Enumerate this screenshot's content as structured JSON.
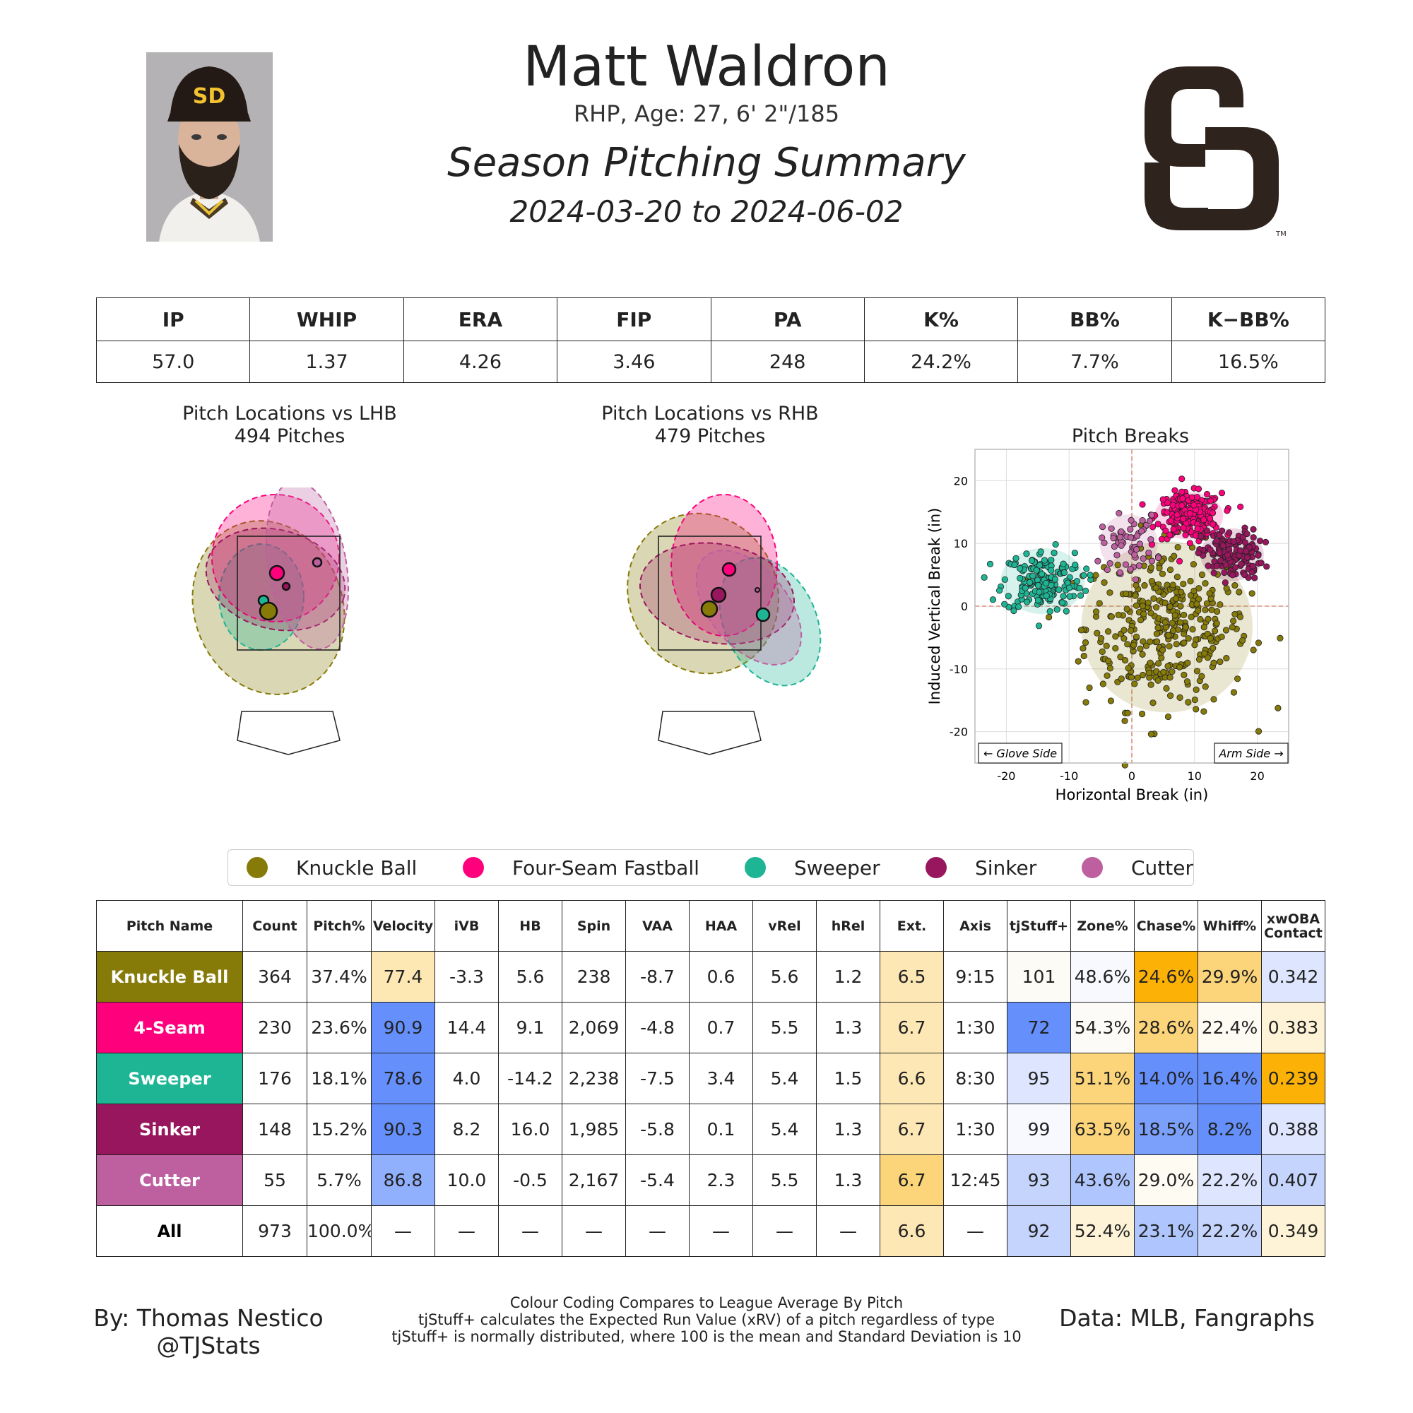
{
  "header": {
    "name": "Matt Waldron",
    "bio": "RHP, Age: 27, 6' 2\"/185",
    "title": "Season Pitching Summary",
    "dates": "2024-03-20 to 2024-06-02"
  },
  "images": {
    "headshot": "player-headshot",
    "logo": "padres-sd-logo"
  },
  "season_stats": {
    "headers": [
      "IP",
      "WHIP",
      "ERA",
      "FIP",
      "PA",
      "K%",
      "BB%",
      "K−BB%"
    ],
    "values": [
      "57.0",
      "1.37",
      "4.26",
      "3.46",
      "248",
      "24.2%",
      "7.7%",
      "16.5%"
    ]
  },
  "plots": {
    "lhb_title": "Pitch Locations vs LHB",
    "lhb_count": "494 Pitches",
    "rhb_title": "Pitch Locations vs RHB",
    "rhb_count": "479 Pitches",
    "breaks_title": "Pitch Breaks",
    "breaks_xlabel": "Horizontal Break (in)",
    "breaks_ylabel": "Induced Vertical Break (in)",
    "glove_side": "← Glove Side",
    "arm_side": "Arm Side →"
  },
  "legend": [
    {
      "name": "Knuckle Ball",
      "color": "#867a08"
    },
    {
      "name": "Four-Seam Fastball",
      "color": "#ff007d"
    },
    {
      "name": "Sweeper",
      "color": "#1db594"
    },
    {
      "name": "Sinker",
      "color": "#98165d"
    },
    {
      "name": "Cutter",
      "color": "#be5fa0"
    }
  ],
  "pitch_table": {
    "headers": [
      "Pitch Name",
      "Count",
      "Pitch%",
      "Velocity",
      "iVB",
      "HB",
      "Spin",
      "VAA",
      "HAA",
      "vRel",
      "hRel",
      "Ext.",
      "Axis",
      "tjStuff+",
      "Zone%",
      "Chase%",
      "Whiff%",
      "xwOBA Contact"
    ],
    "rows": [
      {
        "name": "Knuckle Ball",
        "color": "#867a08",
        "cells": [
          "364",
          "37.4%",
          "77.4",
          "-3.3",
          "5.6",
          "238",
          "-8.7",
          "0.6",
          "5.6",
          "1.2",
          "6.5",
          "9:15",
          "101",
          "48.6%",
          "24.6%",
          "29.9%",
          "0.342"
        ],
        "bg": [
          "",
          "",
          "#fde7b3",
          "",
          "",
          "",
          "",
          "",
          "",
          "",
          "#fde8b5",
          "",
          "#fdfbf6",
          "#f7f9fe",
          "#fcb106",
          "#fcd57a",
          "#dde6fe"
        ]
      },
      {
        "name": "4-Seam",
        "color": "#ff007d",
        "cells": [
          "230",
          "23.6%",
          "90.9",
          "14.4",
          "9.1",
          "2,069",
          "-4.8",
          "0.7",
          "5.5",
          "1.3",
          "6.7",
          "1:30",
          "72",
          "54.3%",
          "28.6%",
          "22.4%",
          "0.383"
        ],
        "bg": [
          "",
          "",
          "#6590fc",
          "",
          "",
          "",
          "",
          "",
          "",
          "",
          "#fde8b5",
          "",
          "#6590fc",
          "#fdfbf7",
          "#fcd57a",
          "#fdfbf2",
          "#fef3d6"
        ]
      },
      {
        "name": "Sweeper",
        "color": "#1db594",
        "cells": [
          "176",
          "18.1%",
          "78.6",
          "4.0",
          "-14.2",
          "2,238",
          "-7.5",
          "3.4",
          "5.4",
          "1.5",
          "6.6",
          "8:30",
          "95",
          "51.1%",
          "14.0%",
          "16.4%",
          "0.239"
        ],
        "bg": [
          "",
          "",
          "#6590fc",
          "",
          "",
          "",
          "",
          "",
          "",
          "",
          "#fde8b5",
          "",
          "#dde6fe",
          "#fcd57a",
          "#6590fc",
          "#6590fc",
          "#fcb106"
        ]
      },
      {
        "name": "Sinker",
        "color": "#98165d",
        "cells": [
          "148",
          "15.2%",
          "90.3",
          "8.2",
          "16.0",
          "1,985",
          "-5.8",
          "0.1",
          "5.4",
          "1.3",
          "6.7",
          "1:30",
          "99",
          "63.5%",
          "18.5%",
          "8.2%",
          "0.388"
        ],
        "bg": [
          "",
          "",
          "#6590fc",
          "",
          "",
          "",
          "",
          "",
          "",
          "",
          "#fde8b5",
          "",
          "#f7f9fe",
          "#fcd57a",
          "#7aa0fc",
          "#6590fc",
          "#dde6fe"
        ]
      },
      {
        "name": "Cutter",
        "color": "#be5fa0",
        "cells": [
          "55",
          "5.7%",
          "86.8",
          "10.0",
          "-0.5",
          "2,167",
          "-5.4",
          "2.3",
          "5.5",
          "1.3",
          "6.7",
          "12:45",
          "93",
          "43.6%",
          "29.0%",
          "22.2%",
          "0.407"
        ],
        "bg": [
          "",
          "",
          "#90affc",
          "",
          "",
          "",
          "",
          "",
          "",
          "",
          "#fcd57a",
          "",
          "#c4d4fd",
          "#aec5fd",
          "#fdfbf2",
          "#dde6fe",
          "#c4d4fd"
        ]
      },
      {
        "name": "All",
        "color": "#ffffff",
        "cells": [
          "973",
          "100.0%",
          "—",
          "—",
          "—",
          "—",
          "—",
          "—",
          "—",
          "—",
          "6.6",
          "—",
          "92",
          "52.4%",
          "23.1%",
          "22.2%",
          "0.349"
        ],
        "bg": [
          "",
          "",
          "",
          "",
          "",
          "",
          "",
          "",
          "",
          "",
          "#fde8b5",
          "",
          "#c4d4fd",
          "#fef3d6",
          "#aec5fd",
          "#c4d4fd",
          "#fef3d6"
        ]
      }
    ]
  },
  "footer": {
    "by": "By: Thomas Nestico",
    "handle": "@TJStats",
    "note1": "Colour Coding Compares to League Average By Pitch",
    "note2": "tjStuff+ calculates the Expected Run Value (xRV) of a pitch regardless of type",
    "note3": "tjStuff+ is normally distributed, where 100 is the mean and Standard Deviation is 10",
    "data": "Data: MLB, Fangraphs"
  },
  "chart_data": [
    {
      "type": "scatter",
      "title": "Pitch Breaks",
      "xlabel": "Horizontal Break (in)",
      "ylabel": "Induced Vertical Break (in)",
      "xlim": [
        -25,
        25
      ],
      "ylim": [
        -25,
        25
      ],
      "xticks": [
        -20,
        -10,
        0,
        10,
        20
      ],
      "yticks": [
        -20,
        -10,
        0,
        10,
        20
      ],
      "grid": true,
      "series": [
        {
          "name": "Knuckle Ball",
          "color": "#867a08",
          "center": [
            5.6,
            -3.3
          ],
          "spread": [
            6.5,
            6.5
          ],
          "n": 364
        },
        {
          "name": "Four-Seam Fastball",
          "color": "#ff007d",
          "center": [
            9.1,
            14.4
          ],
          "spread": [
            2.6,
            1.8
          ],
          "n": 230
        },
        {
          "name": "Sweeper",
          "color": "#1db594",
          "center": [
            -14.2,
            4.0
          ],
          "spread": [
            3.2,
            2.5
          ],
          "n": 176
        },
        {
          "name": "Sinker",
          "color": "#98165d",
          "center": [
            16.0,
            8.2
          ],
          "spread": [
            2.4,
            2.0
          ],
          "n": 148
        },
        {
          "name": "Cutter",
          "color": "#be5fa0",
          "center": [
            -0.5,
            10.0
          ],
          "spread": [
            2.2,
            2.2
          ],
          "n": 55
        }
      ]
    }
  ]
}
